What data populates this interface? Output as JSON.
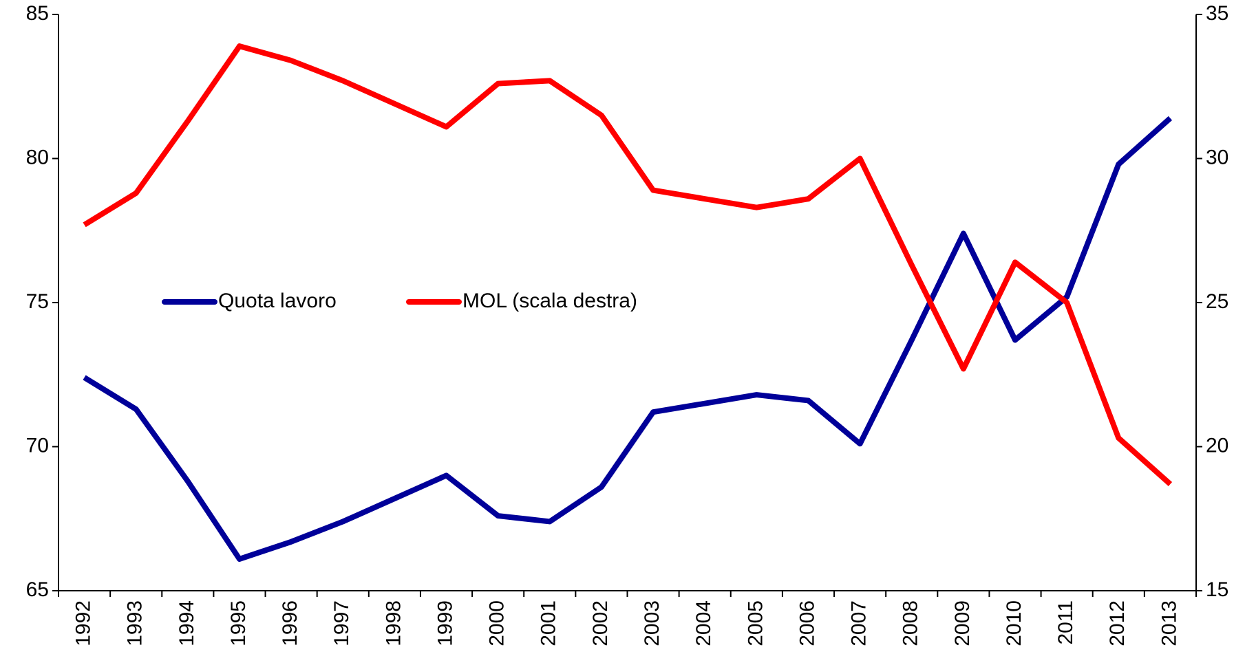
{
  "chart_data": {
    "type": "line",
    "categories": [
      "1992",
      "1993",
      "1994",
      "1995",
      "1996",
      "1997",
      "1998",
      "1999",
      "2000",
      "2001",
      "2002",
      "2003",
      "2004",
      "2005",
      "2006",
      "2007",
      "2008",
      "2009",
      "2010",
      "2011",
      "2012",
      "2013"
    ],
    "series": [
      {
        "name": "Quota lavoro",
        "color": "#000099",
        "axis": "y",
        "values": [
          72.4,
          71.3,
          68.8,
          66.1,
          66.7,
          67.4,
          68.2,
          69.0,
          67.6,
          67.4,
          68.6,
          71.2,
          71.5,
          71.8,
          71.6,
          70.1,
          73.7,
          77.4,
          73.7,
          75.2,
          79.8,
          81.4
        ]
      },
      {
        "name": "MOL (scala destra)",
        "color": "#ff0000",
        "axis": "y2",
        "values": [
          27.7,
          28.8,
          31.3,
          33.9,
          33.4,
          32.7,
          31.9,
          31.1,
          32.6,
          32.7,
          31.5,
          28.9,
          28.6,
          28.3,
          28.6,
          30.0,
          26.3,
          22.7,
          26.4,
          25.0,
          20.3,
          18.7
        ]
      }
    ],
    "ylim": [
      65,
      85
    ],
    "yticks": [
      65,
      70,
      75,
      80,
      85
    ],
    "y2lim": [
      15,
      35
    ],
    "y2ticks": [
      15,
      20,
      25,
      30,
      35
    ],
    "grid": false,
    "legend": "center-left"
  }
}
